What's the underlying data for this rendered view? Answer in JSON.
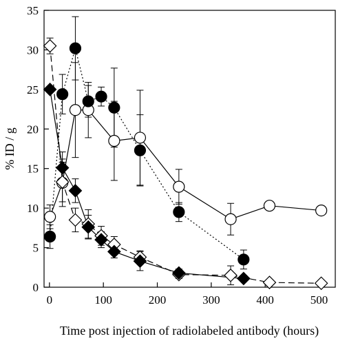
{
  "chart_data": {
    "type": "scatter",
    "title": "",
    "xlabel": "Time post injection of radiolabeled antibody (hours)",
    "ylabel": "% ID / g",
    "xlim": [
      -10,
      530
    ],
    "ylim": [
      0,
      35
    ],
    "xticks": [
      0,
      100,
      200,
      300,
      400,
      500
    ],
    "yticks": [
      0,
      5,
      10,
      15,
      20,
      25,
      30,
      35
    ],
    "legend": "none",
    "grid": false,
    "series": [
      {
        "marker": "open-circle",
        "line": "solid",
        "color": "#000000",
        "x": [
          1,
          24,
          48,
          72,
          120,
          168,
          240,
          336,
          408,
          504
        ],
        "y": [
          8.9,
          13.2,
          22.4,
          22.4,
          18.5,
          18.9,
          12.7,
          8.6,
          10.3,
          9.7
        ],
        "err": [
          1.5,
          3.0,
          6.0,
          3.5,
          5.0,
          6.0,
          2.2,
          2.0,
          0,
          0
        ]
      },
      {
        "marker": "filled-circle",
        "line": "dotted",
        "color": "#000000",
        "x": [
          1,
          24,
          48,
          72,
          96,
          120,
          168,
          240,
          360
        ],
        "y": [
          6.4,
          24.4,
          30.2,
          23.5,
          24.1,
          22.7,
          17.3,
          9.5,
          3.5
        ],
        "err": [
          1.5,
          2.5,
          4.0,
          2.0,
          1.2,
          5.0,
          4.5,
          1.2,
          1.2
        ]
      },
      {
        "marker": "open-diamond",
        "line": "dashed",
        "color": "#000000",
        "x": [
          1,
          24,
          48,
          72,
          96,
          120,
          168,
          240,
          336,
          408,
          504
        ],
        "y": [
          30.5,
          13.3,
          8.5,
          8.0,
          6.5,
          5.4,
          3.8,
          1.6,
          1.5,
          0.6,
          0.5
        ],
        "err": [
          1.0,
          2.5,
          1.5,
          1.8,
          1.2,
          1.0,
          0.8,
          0.5,
          1.2,
          0,
          0
        ]
      },
      {
        "marker": "filled-diamond",
        "line": "solid",
        "color": "#000000",
        "x": [
          1,
          24,
          48,
          72,
          96,
          120,
          168,
          240,
          360
        ],
        "y": [
          25.0,
          15.1,
          12.2,
          7.6,
          6.0,
          4.5,
          3.3,
          1.8,
          1.1
        ],
        "err": [
          0,
          2.0,
          1.5,
          1.5,
          1.0,
          0.8,
          1.2,
          0.5,
          0.4
        ]
      }
    ]
  }
}
